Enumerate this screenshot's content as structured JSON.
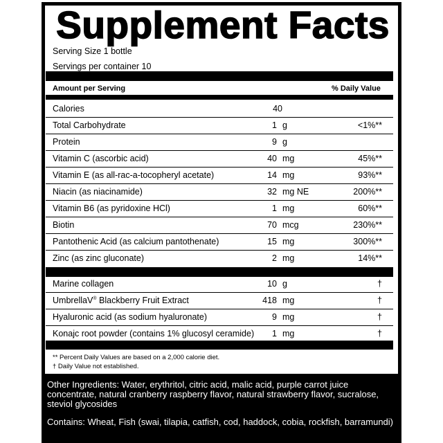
{
  "title": "Supplement Facts",
  "serving_size": "Serving Size 1 bottle",
  "servings_per_container": "Servings per container 10",
  "header": {
    "amount": "Amount per Serving",
    "dv": "% Daily Value"
  },
  "rows": [
    {
      "name": "Calories",
      "qty": "40",
      "unit": "",
      "dv": ""
    },
    {
      "name": "Total Carbohydrate",
      "qty": "1",
      "unit": "g",
      "dv": "<1%**"
    },
    {
      "name": "Protein",
      "qty": "9",
      "unit": "g",
      "dv": ""
    },
    {
      "name": "Vitamin C (ascorbic acid)",
      "qty": "40",
      "unit": "mg",
      "dv": "45%**"
    },
    {
      "name": "Vitamin E (as all-rac-a-tocopheryl acetate)",
      "qty": "14",
      "unit": "mg",
      "dv": "93%**"
    },
    {
      "name": "Niacin (as niacinamide)",
      "qty": "32",
      "unit": "mg NE",
      "dv": "200%**"
    },
    {
      "name": "Vitamin B6 (as pyridoxine HCl)",
      "qty": "1",
      "unit": "mg",
      "dv": "60%**"
    },
    {
      "name": "Biotin",
      "qty": "70",
      "unit": "mcg",
      "dv": "230%**"
    },
    {
      "name": "Pantothenic Acid (as calcium pantothenate)",
      "qty": "15",
      "unit": "mg",
      "dv": "300%**"
    },
    {
      "name": "Zinc (as zinc gluconate)",
      "qty": "2",
      "unit": "mg",
      "dv": "14%**"
    }
  ],
  "rows2": [
    {
      "name": "Marine collagen",
      "qty": "10",
      "unit": "g",
      "dv": "†"
    },
    {
      "name": "UmbrellaV",
      "sup": "®",
      "name_rest": " Blackberry Fruit Extract",
      "qty": "418",
      "unit": "mg",
      "dv": "†"
    },
    {
      "name": "Hyaluronic acid (as sodium hyaluronate)",
      "qty": "9",
      "unit": "mg",
      "dv": "†"
    },
    {
      "name": "Konajc root powder (contains 1% glucosyl ceramide)",
      "qty": "1",
      "unit": "mg",
      "dv": "†"
    }
  ],
  "footnotes": [
    "** Percent Daily Values are based on a 2,000 calorie diet.",
    "† Daily Value not established."
  ],
  "other_ingredients": "Other Ingredients: Water, erythritol, citric acid, malic acid, purple carrot juice concentrate, natural cranberry raspberry flavor, natural strawberry flavor, sucralose, steviol glycosides",
  "contains": "Contains: Wheat, Fish (swai, tilapia, catfish, cod, haddock, cobia, rockfish, barramundi)"
}
